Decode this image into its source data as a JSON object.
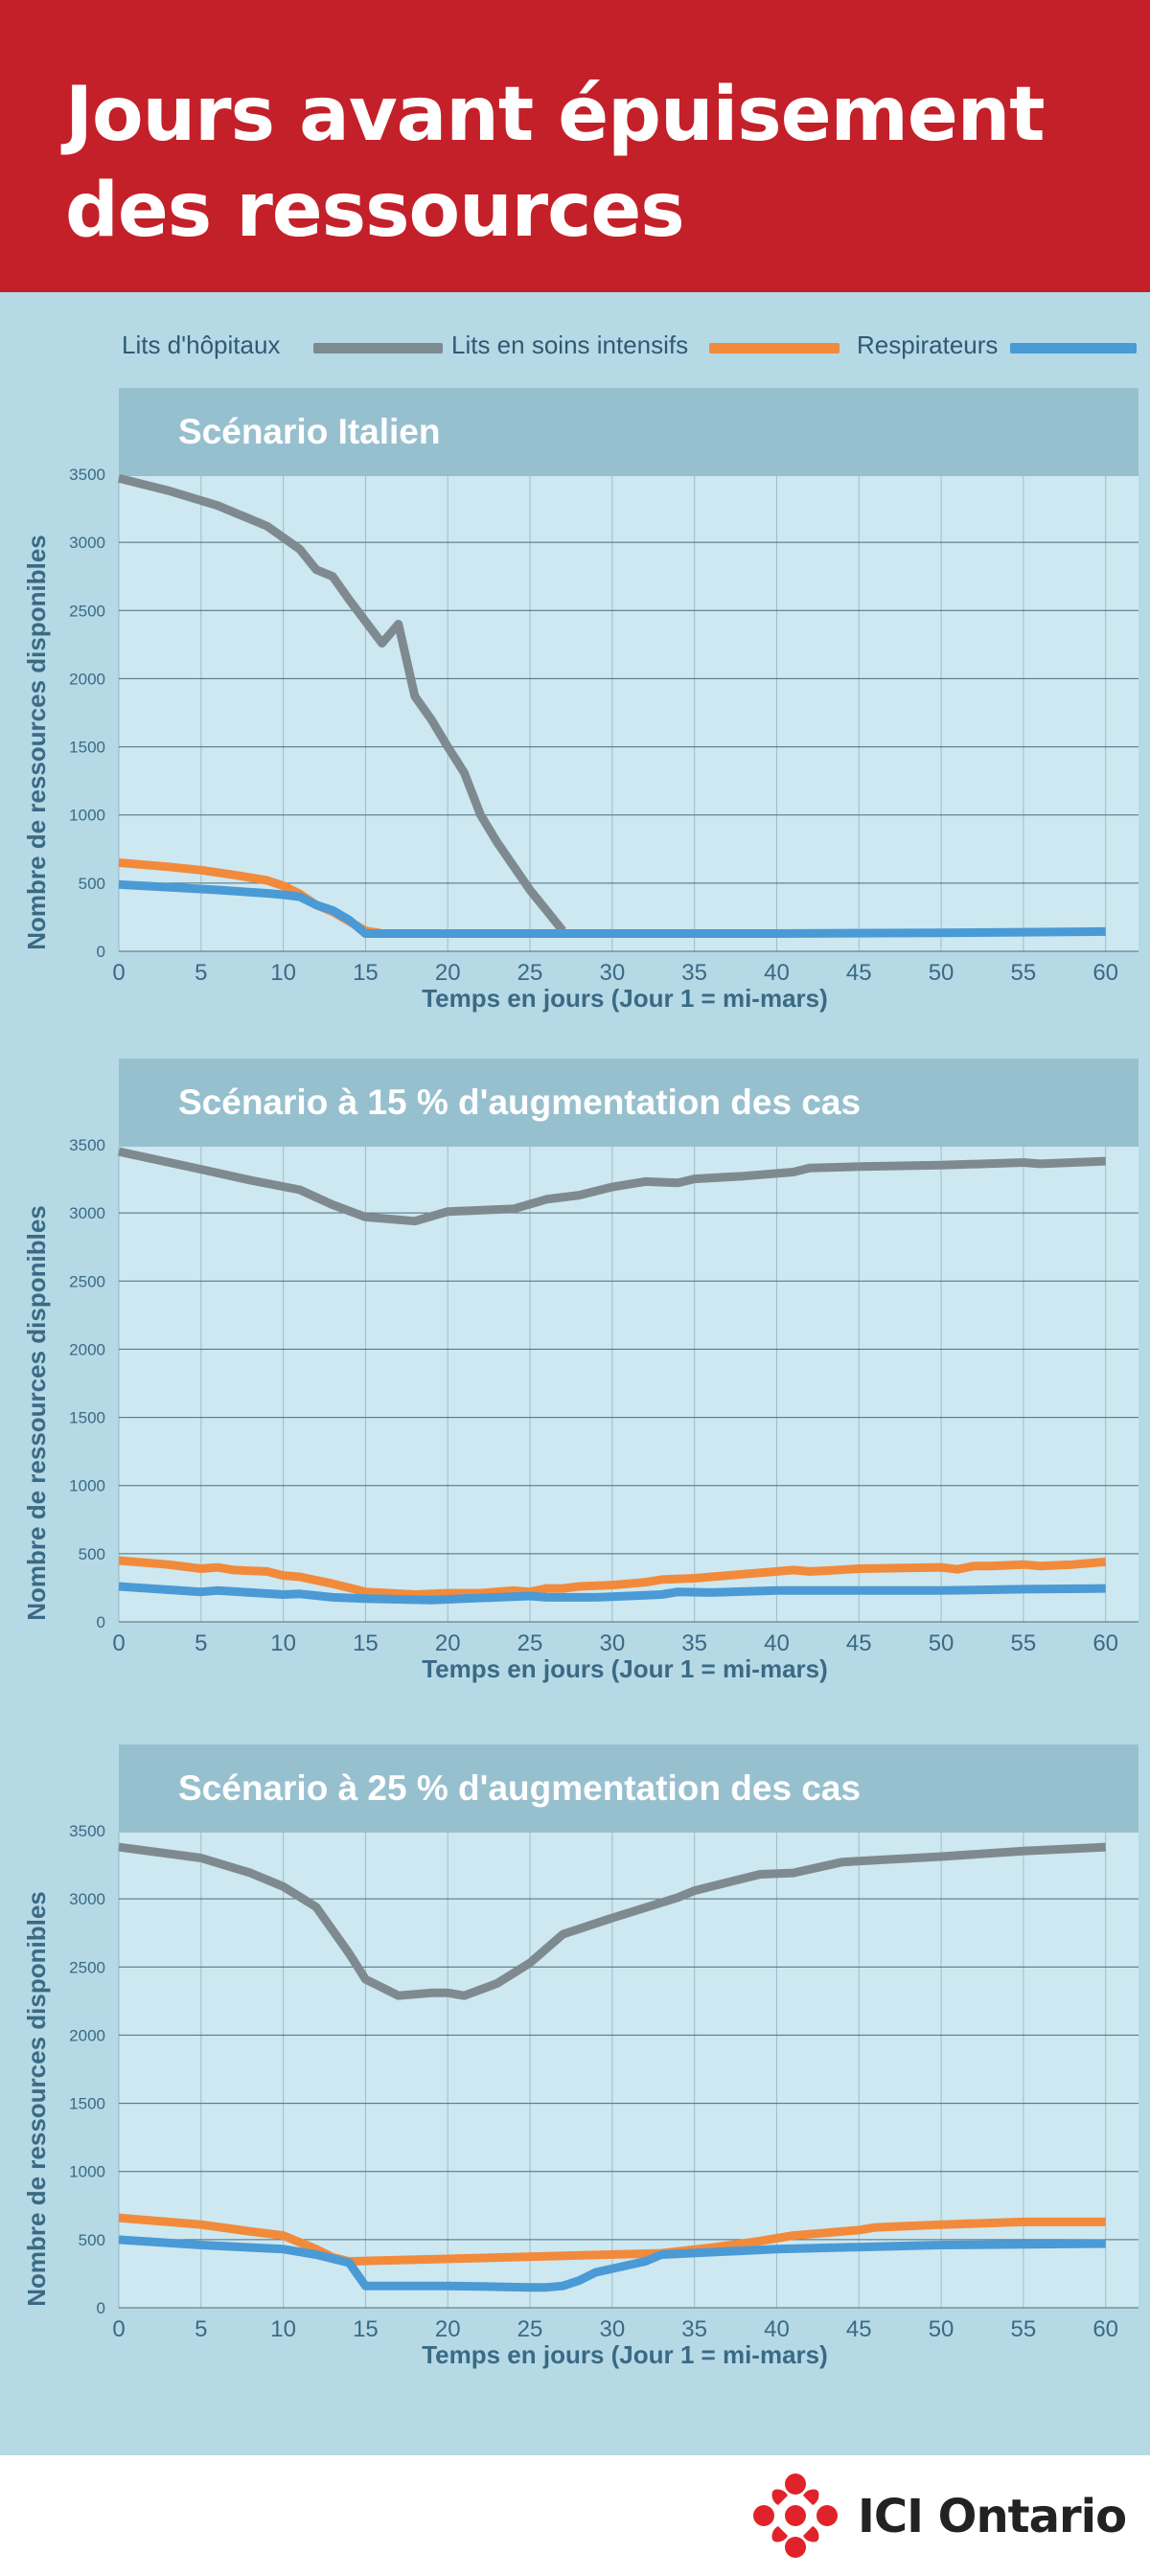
{
  "title": "Jours avant épuisement des ressources",
  "legend": [
    {
      "label": "Lits d'hôpitaux",
      "color": "#7f8a90"
    },
    {
      "label": "Lits en soins intensifs",
      "color": "#f28a3c"
    },
    {
      "label": "Respirateurs",
      "color": "#4a9ad6"
    }
  ],
  "brand": {
    "name": "ICI Ontario",
    "logo_icon": "radio-canada-gem-icon",
    "color": "#e0232a"
  },
  "colors": {
    "header": "#c4202a",
    "background": "#b6d9e6",
    "plot": "#cde8f0",
    "banner": "#97c0cf",
    "axis_text": "#3a6a85"
  },
  "chart_data": [
    {
      "type": "line",
      "title": "Scénario Italien",
      "xlabel": "Temps en jours (Jour 1 = mi-mars)",
      "ylabel": "Nombre de ressources disponibles",
      "xlim": [
        0,
        62
      ],
      "ylim": [
        0,
        3500
      ],
      "xticks": [
        0,
        5,
        10,
        15,
        20,
        25,
        30,
        35,
        40,
        45,
        50,
        55,
        60
      ],
      "yticks": [
        0,
        500,
        1000,
        1500,
        2000,
        2500,
        3000,
        3500
      ],
      "grid": true,
      "series": [
        {
          "name": "Lits d'hôpitaux",
          "x": [
            0,
            3,
            6,
            9,
            11,
            12,
            13,
            14,
            15,
            16,
            17,
            18,
            19,
            20,
            21,
            22,
            23,
            25,
            26,
            27
          ],
          "y": [
            3470,
            3380,
            3270,
            3120,
            2950,
            2800,
            2750,
            2580,
            2420,
            2260,
            2400,
            1870,
            1700,
            1500,
            1310,
            1000,
            800,
            450,
            300,
            150
          ]
        },
        {
          "name": "Lits en soins intensifs",
          "x": [
            0,
            3,
            5,
            7,
            9,
            10,
            11,
            12,
            13,
            14,
            15,
            16
          ],
          "y": [
            650,
            620,
            595,
            560,
            520,
            480,
            420,
            340,
            290,
            220,
            150,
            130
          ]
        },
        {
          "name": "Respirateurs",
          "x": [
            0,
            3,
            6,
            9,
            10,
            11,
            12,
            13,
            14,
            15,
            20,
            30,
            40,
            50,
            55,
            60
          ],
          "y": [
            490,
            470,
            450,
            425,
            415,
            400,
            340,
            300,
            230,
            130,
            130,
            130,
            130,
            135,
            140,
            145
          ]
        }
      ]
    },
    {
      "type": "line",
      "title": "Scénario à 15 % d'augmentation des cas",
      "xlabel": "Temps en jours (Jour 1 = mi-mars)",
      "ylabel": "Nombre de ressources disponibles",
      "xlim": [
        0,
        62
      ],
      "ylim": [
        0,
        3500
      ],
      "xticks": [
        0,
        5,
        10,
        15,
        20,
        25,
        30,
        35,
        40,
        45,
        50,
        55,
        60
      ],
      "yticks": [
        0,
        500,
        1000,
        1500,
        2000,
        2500,
        3000,
        3500
      ],
      "grid": true,
      "series": [
        {
          "name": "Lits d'hôpitaux",
          "x": [
            0,
            5,
            8,
            11,
            13,
            15,
            18,
            20,
            24,
            26,
            28,
            30,
            32,
            34,
            35,
            38,
            41,
            42,
            45,
            50,
            55,
            56,
            58,
            60
          ],
          "y": [
            3450,
            3320,
            3240,
            3170,
            3060,
            2970,
            2940,
            3010,
            3030,
            3100,
            3130,
            3190,
            3230,
            3220,
            3250,
            3270,
            3300,
            3330,
            3340,
            3350,
            3370,
            3360,
            3370,
            3380
          ]
        },
        {
          "name": "Lits en soins intensifs",
          "x": [
            0,
            3,
            5,
            6,
            7,
            9,
            10,
            11,
            13,
            14,
            15,
            18,
            20,
            22,
            24,
            25,
            26,
            27,
            28,
            30,
            32,
            33,
            35,
            37,
            40,
            41,
            42,
            43,
            45,
            50,
            51,
            52,
            53,
            55,
            56,
            58,
            60
          ],
          "y": [
            450,
            420,
            390,
            400,
            380,
            370,
            340,
            330,
            280,
            250,
            220,
            200,
            210,
            210,
            230,
            220,
            245,
            245,
            260,
            270,
            290,
            310,
            320,
            340,
            370,
            380,
            370,
            375,
            390,
            400,
            385,
            410,
            410,
            420,
            410,
            420,
            440
          ]
        },
        {
          "name": "Respirateurs",
          "x": [
            0,
            5,
            6,
            8,
            10,
            11,
            13,
            15,
            19,
            21,
            25,
            26,
            29,
            31,
            33,
            34,
            36,
            40,
            45,
            50,
            55,
            60
          ],
          "y": [
            260,
            220,
            230,
            215,
            200,
            205,
            180,
            170,
            160,
            170,
            190,
            180,
            180,
            190,
            200,
            220,
            215,
            230,
            230,
            230,
            240,
            245
          ]
        }
      ]
    },
    {
      "type": "line",
      "title": "Scénario à 25 % d'augmentation des cas",
      "xlabel": "Temps en jours (Jour 1 = mi-mars)",
      "ylabel": "Nombre de ressources disponibles",
      "xlim": [
        0,
        62
      ],
      "ylim": [
        0,
        3500
      ],
      "xticks": [
        0,
        5,
        10,
        15,
        20,
        25,
        30,
        35,
        40,
        45,
        50,
        55,
        60
      ],
      "yticks": [
        0,
        500,
        1000,
        1500,
        2000,
        2500,
        3000,
        3500
      ],
      "grid": true,
      "series": [
        {
          "name": "Lits d'hôpitaux",
          "x": [
            0,
            5,
            8,
            10,
            12,
            14,
            15,
            17,
            19,
            20,
            21,
            23,
            25,
            27,
            30,
            34,
            35,
            39,
            41,
            44,
            50,
            55,
            60
          ],
          "y": [
            3380,
            3300,
            3190,
            3090,
            2940,
            2600,
            2410,
            2290,
            2310,
            2310,
            2290,
            2380,
            2530,
            2740,
            2860,
            3010,
            3060,
            3180,
            3190,
            3270,
            3310,
            3350,
            3380
          ]
        },
        {
          "name": "Lits en soins intensifs",
          "x": [
            0,
            5,
            8,
            10,
            12,
            13,
            14,
            33,
            36,
            39,
            41,
            42,
            44,
            45,
            46,
            50,
            55,
            60
          ],
          "y": [
            660,
            610,
            560,
            530,
            430,
            370,
            340,
            400,
            440,
            490,
            530,
            540,
            560,
            570,
            590,
            610,
            630,
            630
          ]
        },
        {
          "name": "Respirateurs",
          "x": [
            0,
            5,
            10,
            12,
            14,
            15,
            20,
            25,
            26,
            27,
            28,
            29,
            32,
            33,
            40,
            50,
            60
          ],
          "y": [
            500,
            460,
            430,
            390,
            330,
            160,
            160,
            150,
            150,
            160,
            200,
            260,
            340,
            390,
            430,
            460,
            470
          ]
        }
      ]
    }
  ]
}
